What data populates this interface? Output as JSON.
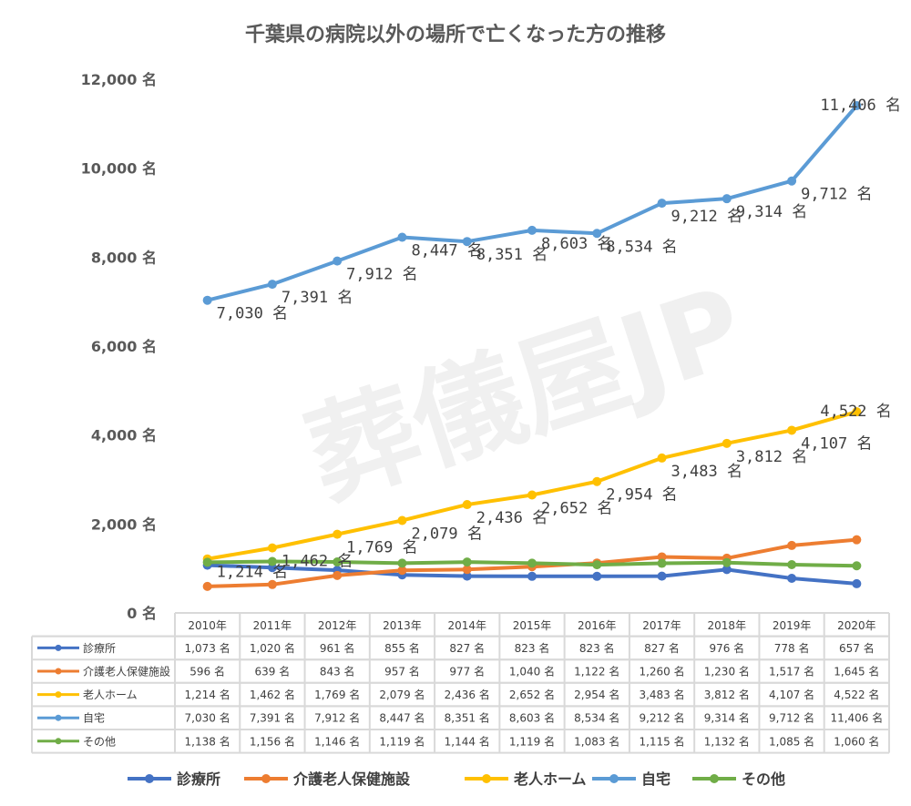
{
  "chart_data": {
    "type": "line",
    "title": "千葉県の病院以外の場所で亡くなった方の推移",
    "categories": [
      "2010年",
      "2011年",
      "2012年",
      "2013年",
      "2014年",
      "2015年",
      "2016年",
      "2017年",
      "2018年",
      "2019年",
      "2020年"
    ],
    "ylim": [
      0,
      12000
    ],
    "yticks": [
      0,
      2000,
      4000,
      6000,
      8000,
      10000,
      12000
    ],
    "unit": "名",
    "grid": false,
    "legend": "bottom",
    "data_table": true,
    "series": [
      {
        "name": "診療所",
        "color": "#4472C4",
        "labels": false,
        "values": [
          1073,
          1020,
          961,
          855,
          827,
          823,
          823,
          827,
          976,
          778,
          657
        ]
      },
      {
        "name": "介護老人保健施設",
        "color": "#ED7D31",
        "labels": false,
        "values": [
          596,
          639,
          843,
          957,
          977,
          1040,
          1122,
          1260,
          1230,
          1517,
          1645
        ]
      },
      {
        "name": "老人ホーム",
        "color": "#FFC000",
        "labels": true,
        "values": [
          1214,
          1462,
          1769,
          2079,
          2436,
          2652,
          2954,
          3483,
          3812,
          4107,
          4522
        ]
      },
      {
        "name": "自宅",
        "color": "#5B9BD5",
        "labels": true,
        "values": [
          7030,
          7391,
          7912,
          8447,
          8351,
          8603,
          8534,
          9212,
          9314,
          9712,
          11406
        ]
      },
      {
        "name": "その他",
        "color": "#70AD47",
        "labels": false,
        "values": [
          1138,
          1156,
          1146,
          1119,
          1144,
          1119,
          1083,
          1115,
          1132,
          1085,
          1060
        ]
      }
    ]
  },
  "watermark": "葬儀屋JP"
}
